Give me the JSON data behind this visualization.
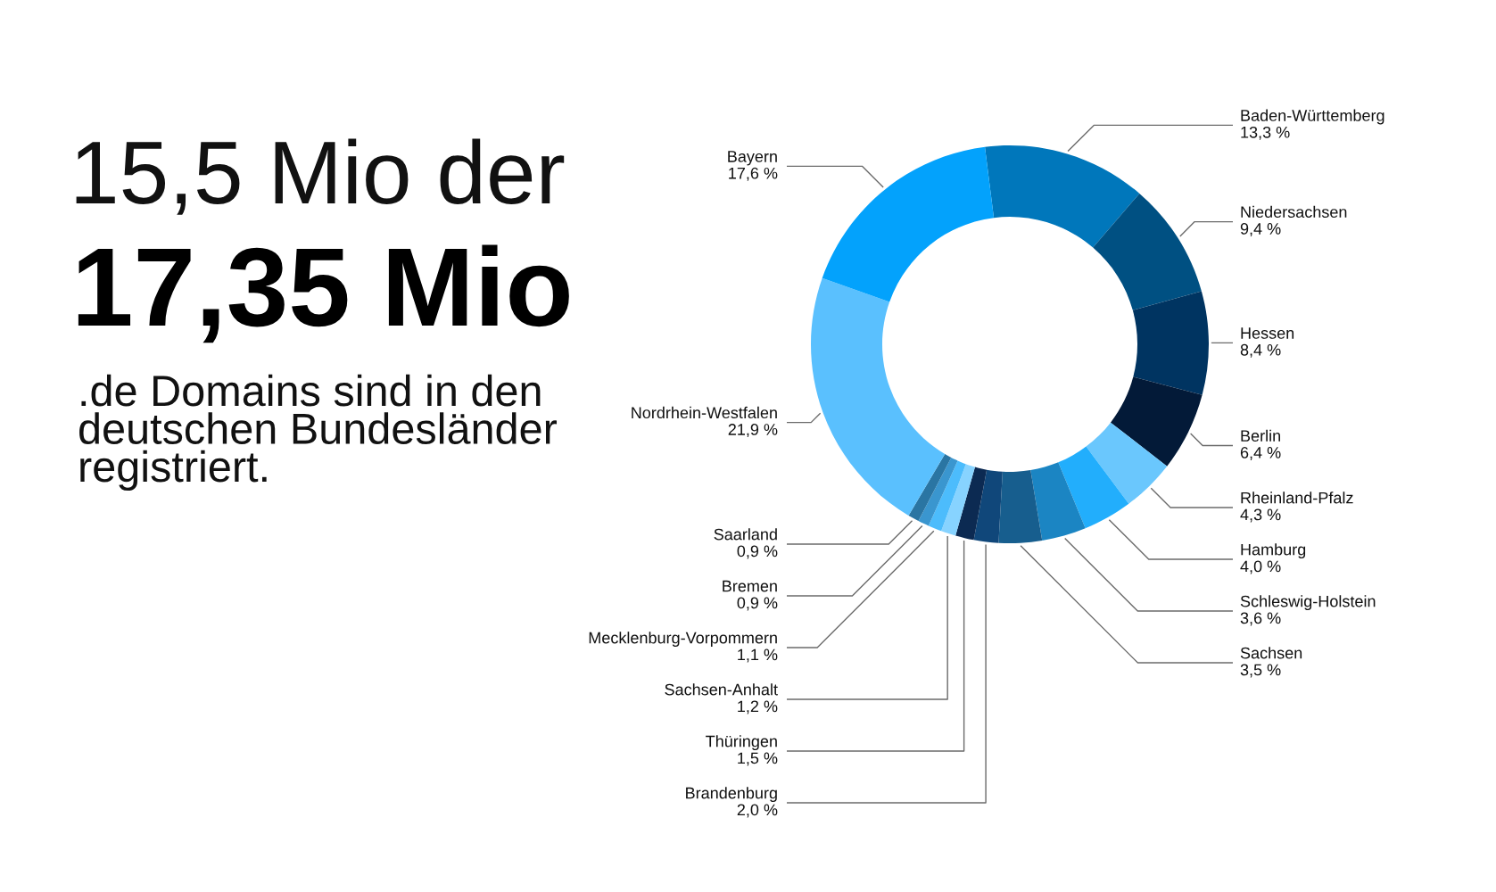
{
  "chart_data": {
    "type": "donut",
    "title": "15,5 Mio der",
    "subtitle": "17,35 Mio",
    "annotations": [
      ".de Domains sind in den\ndeutschen Bundesländer\nregistriert."
    ],
    "categories": [
      "Baden-Württemberg",
      "Niedersachsen",
      "Hessen",
      "Berlin",
      "Rheinland-Pfalz",
      "Hamburg",
      "Schleswig-Holstein",
      "Sachsen",
      "Brandenburg",
      "Thüringen",
      "Sachsen-Anhalt",
      "Mecklenburg-Vorpommern",
      "Bremen",
      "Saarland",
      "Nordrhein-Westfalen",
      "Bayern"
    ],
    "values": [
      13.3,
      9.4,
      8.4,
      6.4,
      4.3,
      4.0,
      3.6,
      3.5,
      2.0,
      1.5,
      1.2,
      1.1,
      0.9,
      0.9,
      21.9,
      17.6
    ],
    "value_labels": [
      "13,3 %",
      "9,4 %",
      "8,4 %",
      "6,4 %",
      "4,3 %",
      "4,0 %",
      "3,6 %",
      "3,5 %",
      "2,0 %",
      "1,5 %",
      "1,2 %",
      "1,1 %",
      "0,9 %",
      "0,9 %",
      "21,9 %",
      "17,6 %"
    ],
    "colors": [
      "#0077bb",
      "#005082",
      "#003461",
      "#031a38",
      "#6ac7fd",
      "#22aefc",
      "#1b85c3",
      "#175e8e",
      "#10477a",
      "#0c2a52",
      "#87d3ff",
      "#4cbcfc",
      "#3a96cf",
      "#2a75a3",
      "#5ac0fe",
      "#03a2fc"
    ]
  }
}
